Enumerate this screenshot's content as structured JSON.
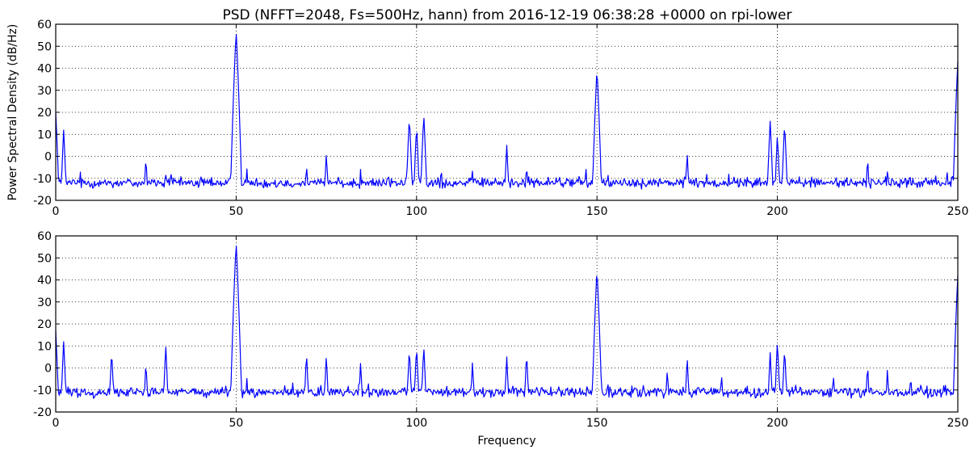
{
  "figure": {
    "title": "PSD (NFFT=2048, Fs=500Hz, hann) from 2016-12-19 06:38:28 +0000 on rpi-lower"
  },
  "chart_data": [
    {
      "type": "line",
      "title": "PSD (NFFT=2048, Fs=500Hz, hann) from 2016-12-19 06:38:28 +0000 on rpi-lower",
      "xlabel": "",
      "ylabel": "Power Spectral Density (dB/Hz)",
      "xlim": [
        0,
        250
      ],
      "ylim": [
        -20,
        60
      ],
      "xticks": [
        0,
        50,
        100,
        150,
        200,
        250
      ],
      "yticks": [
        -20,
        -10,
        0,
        10,
        20,
        30,
        40,
        50,
        60
      ],
      "grid": true,
      "series_color": "#0000ff",
      "noise_floor": -12,
      "peaks": [
        {
          "x": 0,
          "y": 20
        },
        {
          "x": 2.2,
          "y": 12
        },
        {
          "x": 15.5,
          "y": -9
        },
        {
          "x": 25,
          "y": 0
        },
        {
          "x": 30.5,
          "y": -8
        },
        {
          "x": 50,
          "y": 57
        },
        {
          "x": 53,
          "y": -5
        },
        {
          "x": 69.5,
          "y": -3
        },
        {
          "x": 75,
          "y": 2
        },
        {
          "x": 84.5,
          "y": -5
        },
        {
          "x": 98,
          "y": 18
        },
        {
          "x": 100,
          "y": 14
        },
        {
          "x": 102,
          "y": 19
        },
        {
          "x": 115.5,
          "y": -6
        },
        {
          "x": 125,
          "y": 5
        },
        {
          "x": 130.5,
          "y": -3
        },
        {
          "x": 147,
          "y": -5
        },
        {
          "x": 150,
          "y": 40
        },
        {
          "x": 153,
          "y": -6
        },
        {
          "x": 169.5,
          "y": -9
        },
        {
          "x": 175,
          "y": 2
        },
        {
          "x": 198,
          "y": 16
        },
        {
          "x": 200,
          "y": 10
        },
        {
          "x": 202,
          "y": 15
        },
        {
          "x": 211,
          "y": -8
        },
        {
          "x": 225,
          "y": 0
        },
        {
          "x": 230.5,
          "y": -6
        },
        {
          "x": 247,
          "y": -5
        },
        {
          "x": 250,
          "y": 43
        }
      ]
    },
    {
      "type": "line",
      "title": "",
      "xlabel": "Frequency",
      "ylabel": "",
      "xlim": [
        0,
        250
      ],
      "ylim": [
        -20,
        60
      ],
      "xticks": [
        0,
        50,
        100,
        150,
        200,
        250
      ],
      "yticks": [
        -20,
        -10,
        0,
        10,
        20,
        30,
        40,
        50,
        60
      ],
      "grid": true,
      "series_color": "#0000ff",
      "noise_floor": -11,
      "peaks": [
        {
          "x": 0,
          "y": 17
        },
        {
          "x": 2.2,
          "y": 12
        },
        {
          "x": 15.5,
          "y": 8
        },
        {
          "x": 25,
          "y": 3
        },
        {
          "x": 30.5,
          "y": 10
        },
        {
          "x": 50,
          "y": 57
        },
        {
          "x": 53,
          "y": -4
        },
        {
          "x": 69.5,
          "y": 7
        },
        {
          "x": 75,
          "y": 6
        },
        {
          "x": 84.5,
          "y": 3
        },
        {
          "x": 98,
          "y": 9
        },
        {
          "x": 100,
          "y": 10
        },
        {
          "x": 102,
          "y": 10
        },
        {
          "x": 115.5,
          "y": 3
        },
        {
          "x": 125,
          "y": 5
        },
        {
          "x": 130.5,
          "y": 7
        },
        {
          "x": 150,
          "y": 45
        },
        {
          "x": 153,
          "y": -5
        },
        {
          "x": 169.5,
          "y": 0
        },
        {
          "x": 175,
          "y": 5
        },
        {
          "x": 184.5,
          "y": -2
        },
        {
          "x": 198,
          "y": 7
        },
        {
          "x": 200,
          "y": 12
        },
        {
          "x": 202,
          "y": 9
        },
        {
          "x": 215.5,
          "y": -2
        },
        {
          "x": 225,
          "y": 2
        },
        {
          "x": 230.5,
          "y": 0
        },
        {
          "x": 246.5,
          "y": -5
        },
        {
          "x": 250,
          "y": 42
        }
      ]
    }
  ]
}
